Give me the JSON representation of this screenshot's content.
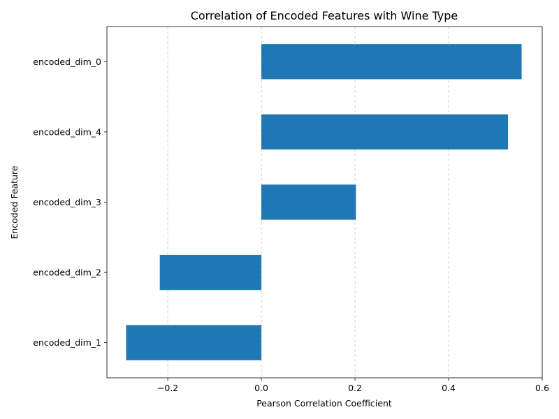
{
  "chart_data": {
    "type": "bar",
    "orientation": "horizontal",
    "title": "Correlation of Encoded Features with Wine Type",
    "xlabel": "Pearson Correlation Coefficient",
    "ylabel": "Encoded Feature",
    "categories": [
      "encoded_dim_0",
      "encoded_dim_4",
      "encoded_dim_3",
      "encoded_dim_2",
      "encoded_dim_1"
    ],
    "values": [
      0.556,
      0.527,
      0.202,
      -0.217,
      -0.289
    ],
    "xlim": [
      -0.33,
      0.6
    ],
    "xticks": [
      -0.2,
      0.0,
      0.2,
      0.4,
      0.6
    ],
    "xtick_labels": [
      "−0.2",
      "0.0",
      "0.2",
      "0.4",
      "0.6"
    ],
    "grid": "x-dashed",
    "bar_color": "#1f77b4"
  }
}
